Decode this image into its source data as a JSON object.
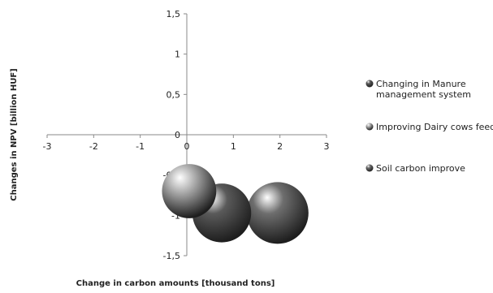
{
  "chart_data": {
    "type": "bubble",
    "xlabel": "Change in carbon amounts [thousand tons]",
    "ylabel": "Changes in NPV [billion HUF]",
    "xlim": [
      -3,
      3
    ],
    "ylim": [
      -1.5,
      1.5
    ],
    "x_ticks": [
      "-3",
      "-2",
      "-1",
      "0",
      "1",
      "2",
      "3"
    ],
    "y_ticks": [
      "1,5",
      "1",
      "0,5",
      "0",
      "-0,5",
      "-1",
      "-1,5"
    ],
    "grid": false,
    "legend_position": "right",
    "series": [
      {
        "name": "Changing in Manure management system",
        "name_lines": [
          "Changing in Manure",
          "management system"
        ],
        "x": 0.75,
        "y": -0.97,
        "size": 1.0,
        "color": "#5a5a5a"
      },
      {
        "name": "Improving Dairy cows feed",
        "name_lines": [
          "Improving Dairy cows feed"
        ],
        "x": 0.05,
        "y": -0.7,
        "size": 0.85,
        "color": "#b0b0b0"
      },
      {
        "name": "Soil carbon improve",
        "name_lines": [
          "Soil carbon improve"
        ],
        "x": 1.95,
        "y": -0.97,
        "size": 1.1,
        "color": "#6e6e6e"
      }
    ]
  }
}
